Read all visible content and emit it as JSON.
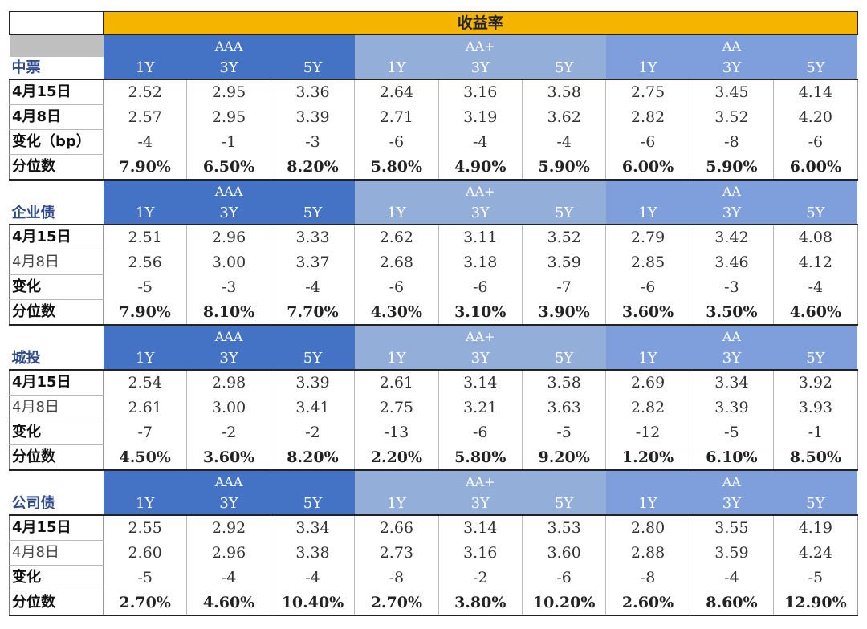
{
  "title": "收益率",
  "tenors": [
    "1Y",
    "3Y",
    "5Y"
  ],
  "ratings": [
    "AAA",
    "AA+",
    "AA"
  ],
  "sections": [
    {
      "name": "中票",
      "rows": [
        {
          "label": "4月15日",
          "values": [
            "2.52",
            "2.95",
            "3.36",
            "2.64",
            "3.16",
            "3.58",
            "2.75",
            "3.45",
            "4.14"
          ]
        },
        {
          "label": "4月8日",
          "values": [
            "2.57",
            "2.95",
            "3.39",
            "2.71",
            "3.19",
            "3.62",
            "2.82",
            "3.52",
            "4.20"
          ]
        },
        {
          "label": "变化（bp）",
          "values": [
            "-4",
            "-1",
            "-3",
            "-6",
            "-4",
            "-4",
            "-6",
            "-8",
            "-6"
          ]
        },
        {
          "label": "分位数",
          "values": [
            "7.90%",
            "6.50%",
            "8.20%",
            "5.80%",
            "4.90%",
            "5.90%",
            "6.00%",
            "5.90%",
            "6.00%"
          ]
        }
      ]
    },
    {
      "name": "企业债",
      "rows": [
        {
          "label": "4月15日",
          "values": [
            "2.51",
            "2.96",
            "3.33",
            "2.62",
            "3.11",
            "3.52",
            "2.79",
            "3.42",
            "4.08"
          ]
        },
        {
          "label": "4月8日",
          "values": [
            "2.56",
            "3.00",
            "3.37",
            "2.68",
            "3.18",
            "3.59",
            "2.85",
            "3.46",
            "4.12"
          ]
        },
        {
          "label": "变化",
          "values": [
            "-5",
            "-3",
            "-4",
            "-6",
            "-6",
            "-7",
            "-6",
            "-3",
            "-4"
          ]
        },
        {
          "label": "分位数",
          "values": [
            "7.90%",
            "8.10%",
            "7.70%",
            "4.30%",
            "3.10%",
            "3.90%",
            "3.60%",
            "3.50%",
            "4.60%"
          ]
        }
      ]
    },
    {
      "name": "城投",
      "rows": [
        {
          "label": "4月15日",
          "values": [
            "2.54",
            "2.98",
            "3.39",
            "2.61",
            "3.14",
            "3.58",
            "2.69",
            "3.34",
            "3.92"
          ]
        },
        {
          "label": "4月8日",
          "values": [
            "2.61",
            "3.00",
            "3.41",
            "2.75",
            "3.21",
            "3.63",
            "2.82",
            "3.39",
            "3.93"
          ]
        },
        {
          "label": "变化",
          "values": [
            "-7",
            "-2",
            "-2",
            "-13",
            "-6",
            "-5",
            "-12",
            "-5",
            "-1"
          ]
        },
        {
          "label": "分位数",
          "values": [
            "4.50%",
            "3.60%",
            "8.20%",
            "2.20%",
            "5.80%",
            "9.20%",
            "1.20%",
            "6.10%",
            "8.50%"
          ]
        }
      ]
    },
    {
      "name": "公司债",
      "rows": [
        {
          "label": "4月15日",
          "values": [
            "2.55",
            "2.92",
            "3.34",
            "2.66",
            "3.14",
            "3.53",
            "2.80",
            "3.55",
            "4.19"
          ]
        },
        {
          "label": "4月8日",
          "values": [
            "2.60",
            "2.96",
            "3.38",
            "2.73",
            "3.16",
            "3.60",
            "2.88",
            "3.59",
            "4.24"
          ]
        },
        {
          "label": "变化",
          "values": [
            "-5",
            "-4",
            "-4",
            "-8",
            "-2",
            "-6",
            "-8",
            "-4",
            "-5"
          ]
        },
        {
          "label": "分位数",
          "values": [
            "2.70%",
            "4.60%",
            "10.40%",
            "2.70%",
            "3.80%",
            "10.20%",
            "2.60%",
            "8.60%",
            "12.90%"
          ]
        }
      ]
    }
  ],
  "colors": {
    "title_bg": "#f5b400",
    "aaa_bg": "#4472c4",
    "aa_plus_bg": "#93aed8",
    "aa_bg": "#7f9fdc",
    "label_text": "#2e4a8a"
  }
}
